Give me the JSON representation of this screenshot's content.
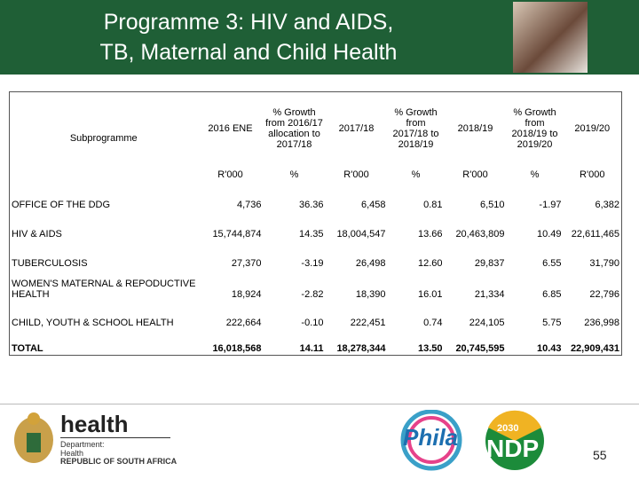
{
  "header": {
    "title_lines": [
      "Programme 3:  HIV and AIDS,",
      "TB,  Maternal and Child Health"
    ]
  },
  "table": {
    "columns": [
      "Subprogramme",
      "2016 ENE",
      "% Growth from 2016/17 allocation to 2017/18",
      "2017/18",
      "% Growth from 2017/18 to 2018/19",
      "2018/19",
      "% Growth from 2018/19 to 2019/20",
      "2019/20"
    ],
    "units": [
      "R'000",
      "%",
      "R'000",
      "%",
      "R'000",
      "%",
      "R'000"
    ],
    "rows": [
      [
        "OFFICE OF THE DDG",
        "4,736",
        "36.36",
        "6,458",
        "0.81",
        "6,510",
        "-1.97",
        "6,382"
      ],
      [
        "HIV & AIDS",
        "15,744,874",
        "14.35",
        "18,004,547",
        "13.66",
        "20,463,809",
        "10.49",
        "22,611,465"
      ],
      [
        "TUBERCULOSIS",
        "27,370",
        "-3.19",
        "26,498",
        "12.60",
        "29,837",
        "6.55",
        "31,790"
      ],
      [
        "WOMEN'S MATERNAL & REPODUCTIVE HEALTH",
        "18,924",
        "-2.82",
        "18,390",
        "16.01",
        "21,334",
        "6.85",
        "22,796"
      ],
      [
        "CHILD, YOUTH & SCHOOL HEALTH",
        "222,664",
        "-0.10",
        "222,451",
        "0.74",
        "224,105",
        "5.75",
        "236,998"
      ],
      [
        "TOTAL",
        "16,018,568",
        "14.11",
        "18,278,344",
        "13.50",
        "20,745,595",
        "10.43",
        "22,909,431"
      ]
    ]
  },
  "footer": {
    "logo": {
      "name": "health",
      "department": "Department:",
      "department_name": "Health",
      "country": "REPUBLIC OF SOUTH AFRICA"
    },
    "phila": "Phila",
    "ndp": {
      "label": "NDP",
      "year": "2030"
    },
    "page_number": "55"
  }
}
